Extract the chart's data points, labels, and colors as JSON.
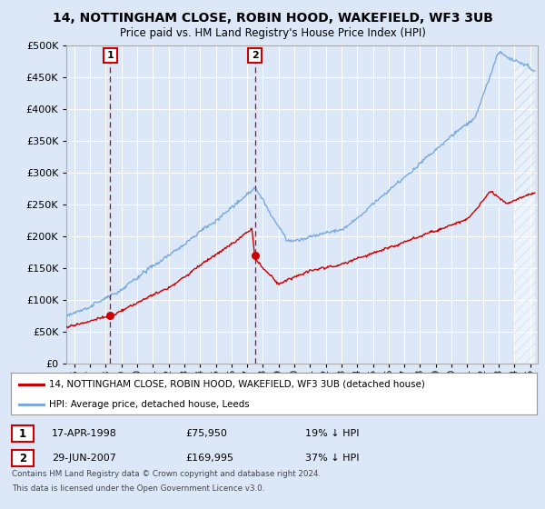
{
  "title": "14, NOTTINGHAM CLOSE, ROBIN HOOD, WAKEFIELD, WF3 3UB",
  "subtitle": "Price paid vs. HM Land Registry's House Price Index (HPI)",
  "fig_bg": "#dce8f8",
  "plot_bg": "#dce8f8",
  "ylim": [
    0,
    500000
  ],
  "yticks": [
    0,
    50000,
    100000,
    150000,
    200000,
    250000,
    300000,
    350000,
    400000,
    450000,
    500000
  ],
  "xmin": 1995.5,
  "xmax": 2025.5,
  "red_color": "#cc0000",
  "blue_color": "#7aaadd",
  "sale1_x": 1998.29,
  "sale1_y": 75950,
  "sale2_x": 2007.49,
  "sale2_y": 169995,
  "legend_line1": "14, NOTTINGHAM CLOSE, ROBIN HOOD, WAKEFIELD, WF3 3UB (detached house)",
  "legend_line2": "HPI: Average price, detached house, Leeds",
  "table_row1_num": "1",
  "table_row1_date": "17-APR-1998",
  "table_row1_price": "£75,950",
  "table_row1_hpi": "19% ↓ HPI",
  "table_row2_num": "2",
  "table_row2_date": "29-JUN-2007",
  "table_row2_price": "£169,995",
  "table_row2_hpi": "37% ↓ HPI",
  "footer_line1": "Contains HM Land Registry data © Crown copyright and database right 2024.",
  "footer_line2": "This data is licensed under the Open Government Licence v3.0."
}
